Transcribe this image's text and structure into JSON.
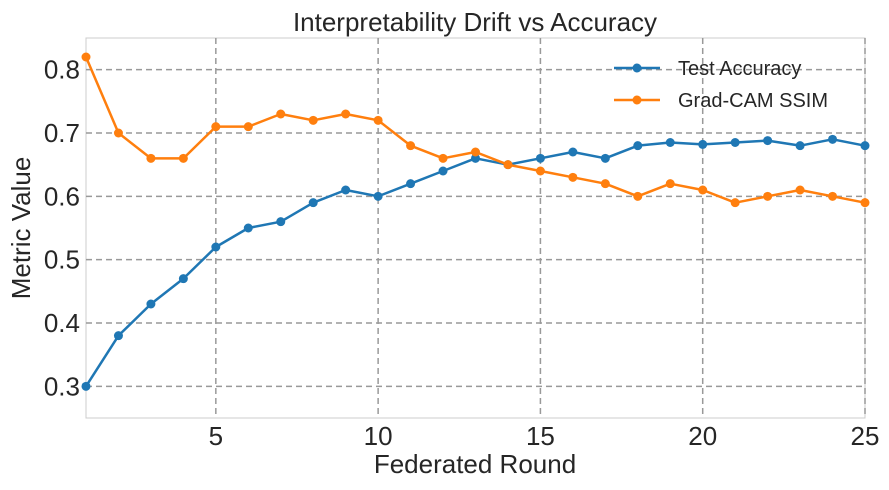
{
  "chart_data": {
    "type": "line",
    "title": "Interpretability Drift vs Accuracy",
    "xlabel": "Federated Round",
    "ylabel": "Metric Value",
    "xlim": [
      1,
      25
    ],
    "ylim": [
      0.25,
      0.85
    ],
    "xticks": [
      5,
      10,
      15,
      20,
      25
    ],
    "yticks": [
      0.3,
      0.4,
      0.5,
      0.6,
      0.7,
      0.8
    ],
    "grid": true,
    "legend_position": "top-right",
    "x": [
      1,
      2,
      3,
      4,
      5,
      6,
      7,
      8,
      9,
      10,
      11,
      12,
      13,
      14,
      15,
      16,
      17,
      18,
      19,
      20,
      21,
      22,
      23,
      24,
      25
    ],
    "series": [
      {
        "name": "Test Accuracy",
        "color": "#1f77b4",
        "values": [
          0.3,
          0.38,
          0.43,
          0.47,
          0.52,
          0.55,
          0.56,
          0.59,
          0.61,
          0.6,
          0.62,
          0.64,
          0.66,
          0.65,
          0.66,
          0.67,
          0.66,
          0.68,
          0.685,
          0.682,
          0.685,
          0.688,
          0.68,
          0.69,
          0.68
        ]
      },
      {
        "name": "Grad-CAM SSIM",
        "color": "#ff7f0e",
        "values": [
          0.82,
          0.7,
          0.66,
          0.66,
          0.71,
          0.71,
          0.73,
          0.72,
          0.73,
          0.72,
          0.68,
          0.66,
          0.67,
          0.65,
          0.64,
          0.63,
          0.62,
          0.6,
          0.62,
          0.61,
          0.59,
          0.6,
          0.61,
          0.6,
          0.59
        ]
      }
    ]
  }
}
